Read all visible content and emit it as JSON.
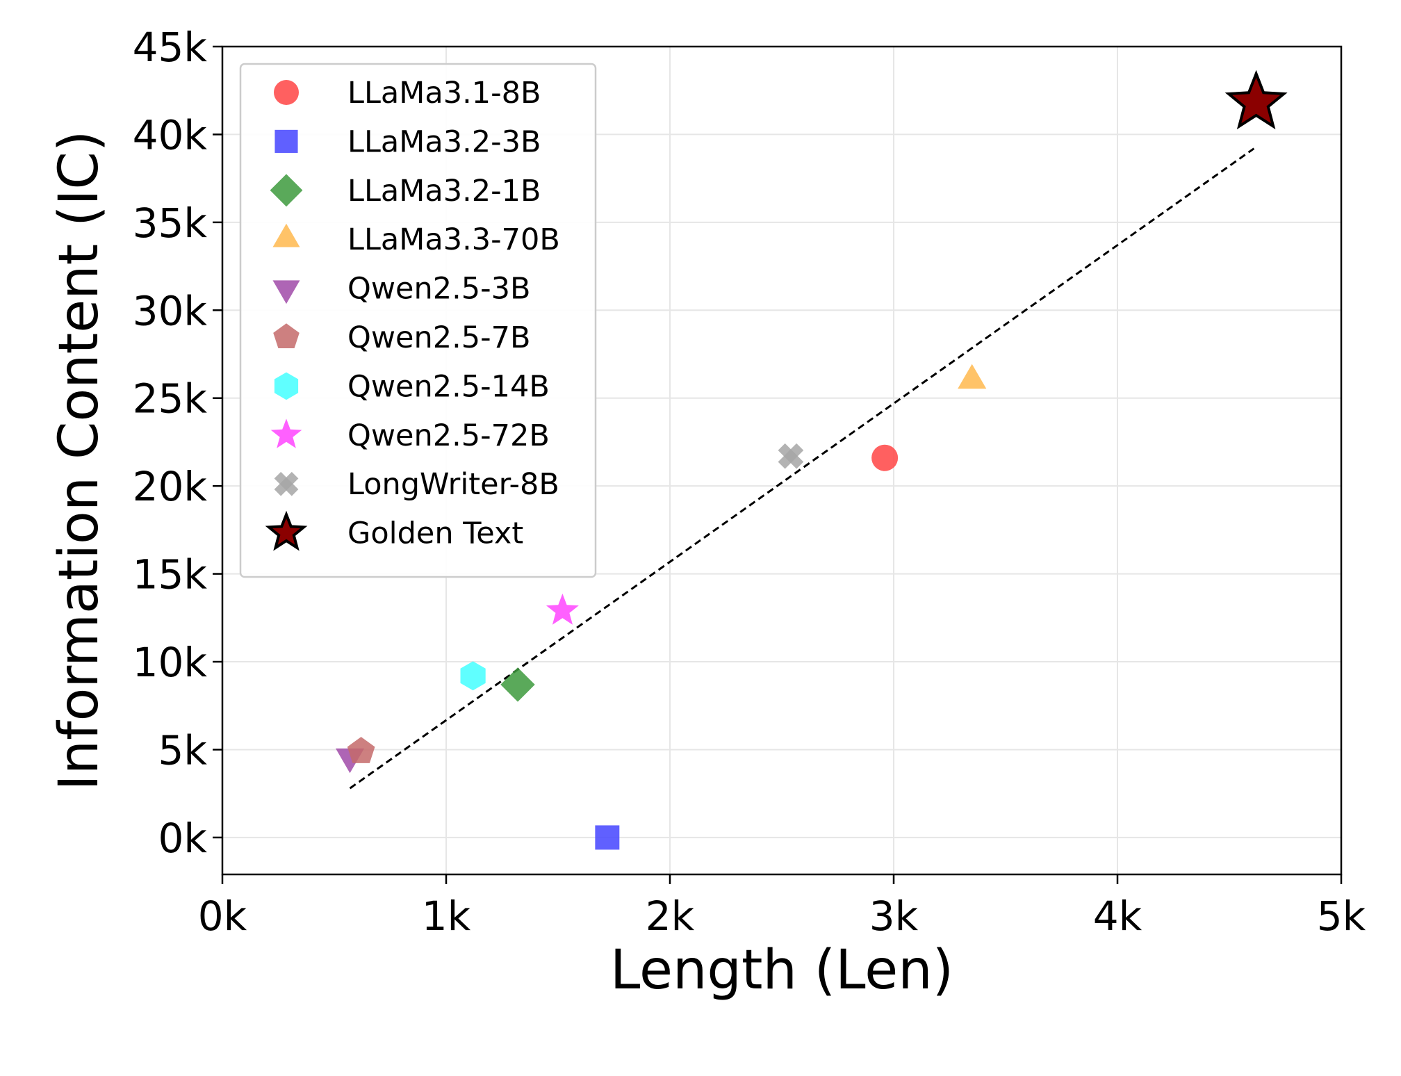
{
  "chart_data": {
    "type": "scatter",
    "title": "",
    "xlabel": "Length (Len)",
    "ylabel": "Information Content (IC)",
    "xlim": [
      0,
      5000
    ],
    "ylim": [
      -2100,
      45000
    ],
    "xticks": [
      0,
      1000,
      2000,
      3000,
      4000,
      5000
    ],
    "xtick_labels": [
      "0k",
      "1k",
      "2k",
      "3k",
      "4k",
      "5k"
    ],
    "yticks": [
      0,
      5000,
      10000,
      15000,
      20000,
      25000,
      30000,
      35000,
      40000,
      45000
    ],
    "ytick_labels": [
      "0k",
      "5k",
      "10k",
      "15k",
      "20k",
      "25k",
      "30k",
      "35k",
      "40k",
      "45k"
    ],
    "grid": true,
    "legend_position": "top-left",
    "series": [
      {
        "name": "LLaMa3.1-8B",
        "marker": "circle",
        "color": "#ff4444",
        "x": 2960,
        "y": 21600
      },
      {
        "name": "LLaMa3.2-3B",
        "marker": "square",
        "color": "#4444ff",
        "x": 1720,
        "y": 0
      },
      {
        "name": "LLaMa3.2-1B",
        "marker": "diamond",
        "color": "#3d9a3d",
        "x": 1320,
        "y": 8700
      },
      {
        "name": "LLaMa3.3-70B",
        "marker": "triangle-up",
        "color": "#ffb84d",
        "x": 3350,
        "y": 26000
      },
      {
        "name": "Qwen2.5-3B",
        "marker": "triangle-down",
        "color": "#a04aa8",
        "x": 570,
        "y": 4600
      },
      {
        "name": "Qwen2.5-7B",
        "marker": "pentagon",
        "color": "#c46a6a",
        "x": 620,
        "y": 4900
      },
      {
        "name": "Qwen2.5-14B",
        "marker": "hexagon",
        "color": "#44ffff",
        "x": 1120,
        "y": 9200
      },
      {
        "name": "Qwen2.5-72B",
        "marker": "star",
        "color": "#ff44ff",
        "x": 1520,
        "y": 12900
      },
      {
        "name": "LongWriter-8B",
        "marker": "x",
        "color": "#a6a6a6",
        "x": 2540,
        "y": 21700
      },
      {
        "name": "Golden Text",
        "marker": "star-outlined",
        "color": "#8b0000",
        "x": 4620,
        "y": 41800
      }
    ],
    "trendline": {
      "style": "dashed",
      "color": "#000000",
      "x": [
        570,
        4610
      ],
      "y": [
        2800,
        39200
      ]
    }
  }
}
